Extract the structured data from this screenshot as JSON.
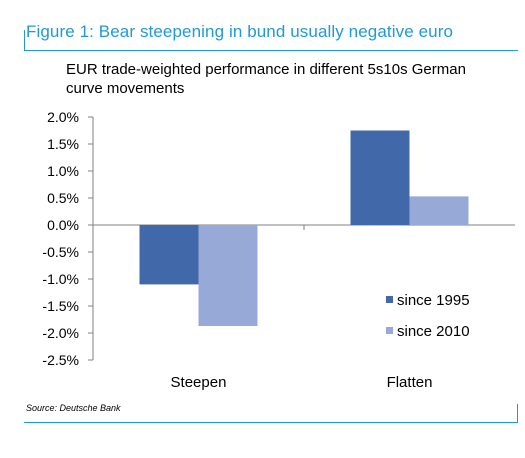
{
  "figure": {
    "title": "Figure 1: Bear steepening in bund usually negative euro",
    "source": "Source: Deutsche Bank"
  },
  "colors": {
    "accent": "#1f9ad6",
    "series_1995": "#4169aa",
    "series_2010": "#97a9d7"
  },
  "chart_data": {
    "type": "bar",
    "title": "EUR trade-weighted performance in different 5s10s German curve movements",
    "categories": [
      "Steepen",
      "Flatten"
    ],
    "series": [
      {
        "name": "since 1995",
        "values": [
          -1.1,
          1.75
        ]
      },
      {
        "name": "since 2010",
        "values": [
          -1.87,
          0.53
        ]
      }
    ],
    "ylim": [
      -2.5,
      2.0
    ],
    "yticks": [
      "2.0%",
      "1.5%",
      "1.0%",
      "0.5%",
      "0.0%",
      "-0.5%",
      "-1.0%",
      "-1.5%",
      "-2.0%",
      "-2.5%"
    ],
    "xlabel": "",
    "ylabel": "",
    "grid": false,
    "legend_position": "bottom-right"
  }
}
